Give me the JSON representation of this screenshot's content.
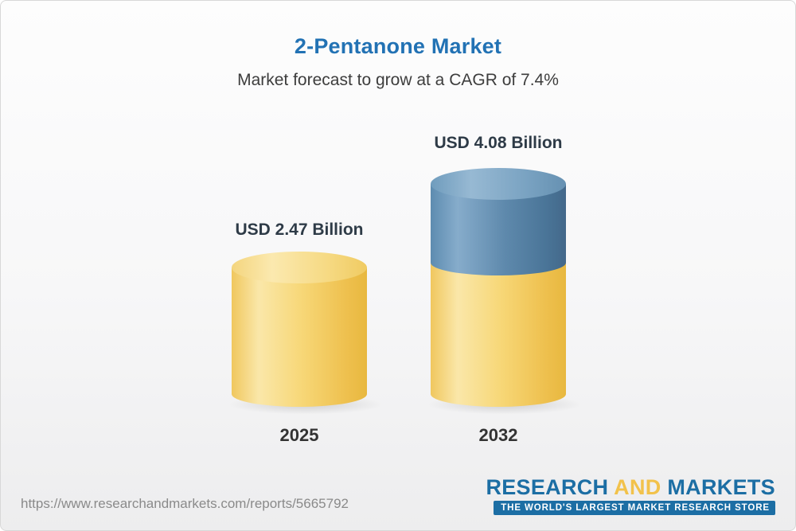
{
  "header": {
    "title": "2-Pentanone Market",
    "subtitle": "Market forecast to grow at a CAGR of 7.4%"
  },
  "chart_data": {
    "type": "bar",
    "bar_style": "3d-cylinder",
    "categories": [
      "2025",
      "2032"
    ],
    "values": [
      2.47,
      4.08
    ],
    "value_labels": [
      "USD 2.47 Billion",
      "USD 4.08 Billion"
    ],
    "unit": "USD Billion",
    "cagr_percent": 7.4,
    "title": "2-Pentanone Market",
    "subtitle": "Market forecast to grow at a CAGR of 7.4%",
    "ylim": [
      0,
      4.5
    ],
    "grid": false,
    "legend": "none",
    "colors": {
      "base_segment": "#F2C85D",
      "growth_segment": "#4E81A8",
      "title_text": "#2272B4",
      "label_text": "#2E3B47"
    }
  },
  "footer": {
    "url": "https://www.researchandmarkets.com/reports/5665792",
    "logo": {
      "research": "RESEARCH",
      "and": "AND",
      "markets": "MARKETS",
      "tagline": "THE WORLD'S LARGEST MARKET RESEARCH STORE"
    }
  }
}
